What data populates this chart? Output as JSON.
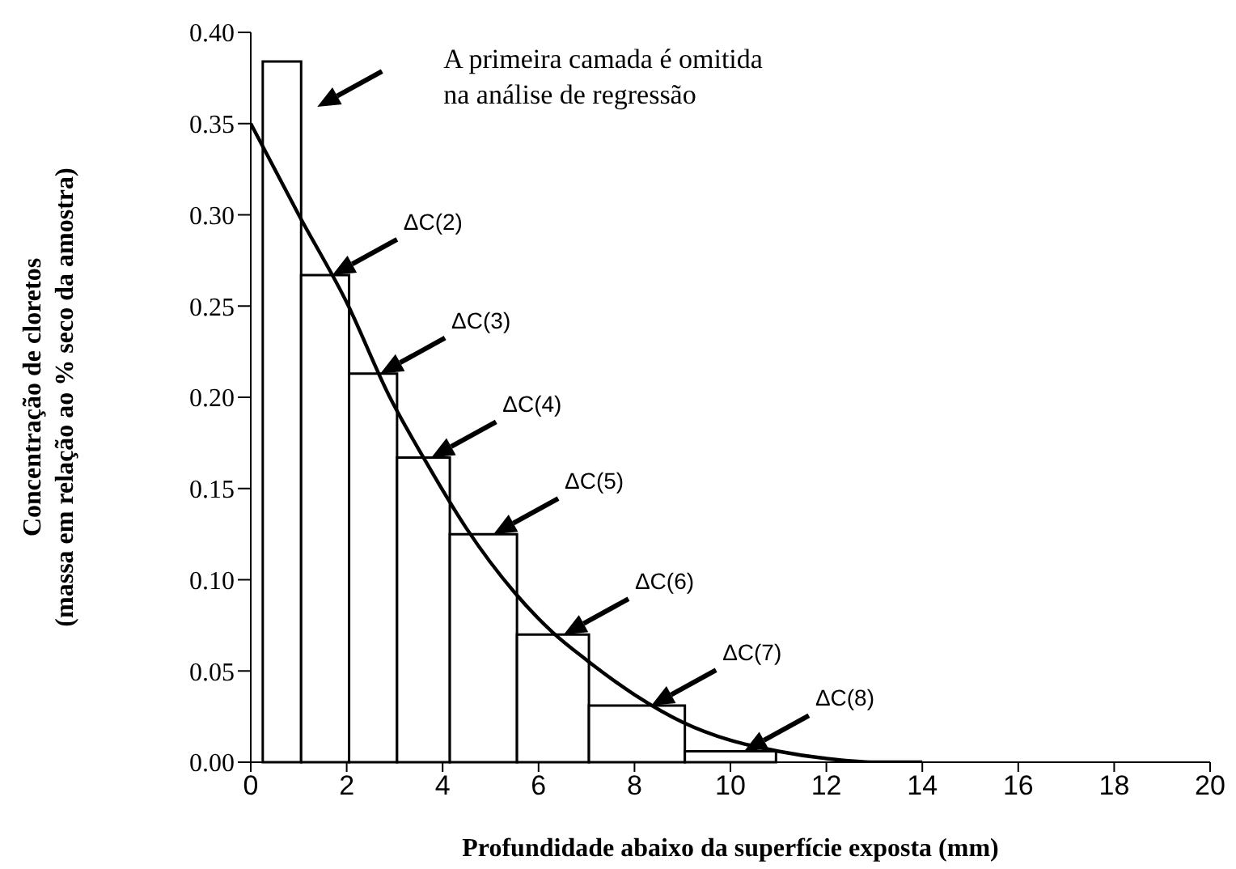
{
  "chart_data": {
    "type": "histogram",
    "xlabel": "Profundidade abaixo da superfície exposta (mm)",
    "ylabel": "Concentração de cloretos\n(massa em relação ao % seco da amostra)",
    "bins": [
      0.25,
      1.05,
      2.05,
      3.05,
      4.15,
      5.55,
      7.05,
      9.05,
      10.95
    ],
    "values": [
      0.384,
      0.267,
      0.213,
      0.167,
      0.125,
      0.07,
      0.031,
      0.006
    ],
    "color": "#ffffff",
    "series": [
      {
        "type": "line",
        "color": "#000000",
        "x": [
          0,
          1,
          2,
          2.9,
          3.6,
          4.5,
          5.5,
          6.3,
          7,
          8,
          9,
          10,
          11,
          12,
          13,
          14
        ],
        "values": [
          0.35,
          0.3,
          0.252,
          0.2,
          0.167,
          0.128,
          0.093,
          0.071,
          0.056,
          0.037,
          0.022,
          0.012,
          0.006,
          0.002,
          0,
          0
        ]
      }
    ],
    "xlim": [
      0,
      20
    ],
    "xticks": [
      0,
      2,
      4,
      6,
      8,
      10,
      12,
      14,
      16,
      18,
      20
    ],
    "ylim": [
      0,
      0.4
    ],
    "yticks": [
      {
        "value": 0,
        "label": "0.00"
      },
      {
        "value": 0.05,
        "label": "0.05"
      },
      {
        "value": 0.1,
        "label": "0.10"
      },
      {
        "value": 0.15,
        "label": "0.15"
      },
      {
        "value": 0.2,
        "label": "0.20"
      },
      {
        "value": 0.25,
        "label": "0.25"
      },
      {
        "value": 0.3,
        "label": "0.30"
      },
      {
        "value": 0.35,
        "label": "0.35"
      },
      {
        "value": 0.4,
        "label": "0.40"
      }
    ],
    "annotations": [
      "A primeira camada é omitida na análise de regressão",
      "ΔC(2)",
      "ΔC(3)",
      "ΔC(4)",
      "ΔC(5)",
      "ΔC(6)",
      "ΔC(7)",
      "ΔC(8)"
    ]
  }
}
